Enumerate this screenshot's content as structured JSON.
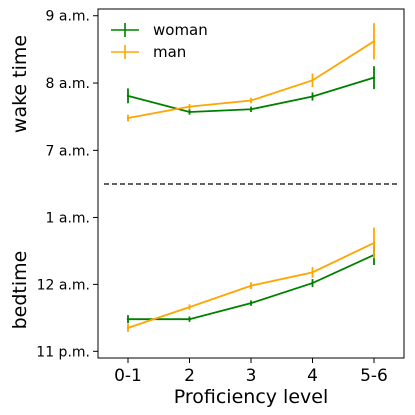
{
  "chart_data": {
    "type": "line",
    "xlabel": "Proficiency level",
    "categories": [
      "0-1",
      "2",
      "3",
      "4",
      "5-6"
    ],
    "colors": {
      "woman": "#008000",
      "man": "#ffa500"
    },
    "legend": {
      "placement": "top-left",
      "entries": [
        {
          "label": "woman",
          "color": "#008000"
        },
        {
          "label": "man",
          "color": "#ffa500"
        }
      ]
    },
    "panels": [
      {
        "ylabel": "wake time",
        "ylim": [
          6.5,
          9.1
        ],
        "yticks": [
          {
            "value": 7,
            "label": "7 a.m."
          },
          {
            "value": 8,
            "label": "8 a.m."
          },
          {
            "value": 9,
            "label": "9 a.m."
          }
        ],
        "series": [
          {
            "name": "woman",
            "values": [
              7.81,
              7.57,
              7.61,
              7.8,
              8.08
            ],
            "errors": [
              0.11,
              0.04,
              0.04,
              0.06,
              0.17
            ]
          },
          {
            "name": "man",
            "values": [
              7.48,
              7.65,
              7.74,
              8.04,
              8.62
            ],
            "errors": [
              0.05,
              0.04,
              0.04,
              0.1,
              0.27
            ]
          }
        ]
      },
      {
        "ylabel": "bedtime",
        "ylim": [
          -1.1,
          1.5
        ],
        "yticks": [
          {
            "value": -1,
            "label": "11 p.m."
          },
          {
            "value": 0,
            "label": "12 a.m."
          },
          {
            "value": 1,
            "label": "1 a.m."
          }
        ],
        "series": [
          {
            "name": "woman",
            "values": [
              -0.52,
              -0.52,
              -0.28,
              0.02,
              0.44
            ],
            "errors": [
              0.06,
              0.04,
              0.04,
              0.06,
              0.15
            ]
          },
          {
            "name": "man",
            "values": [
              -0.65,
              -0.34,
              -0.02,
              0.18,
              0.62
            ],
            "errors": [
              0.06,
              0.04,
              0.05,
              0.08,
              0.23
            ]
          }
        ]
      }
    ],
    "divider": "dashed"
  }
}
